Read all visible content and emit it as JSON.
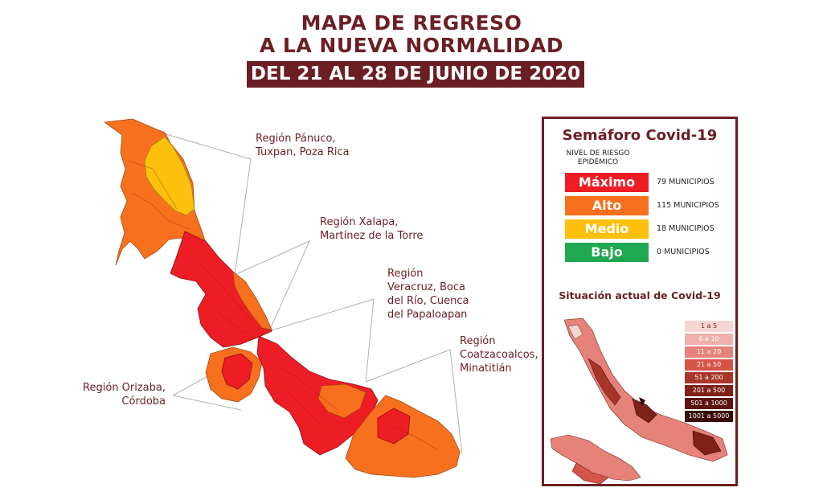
{
  "header": {
    "title_line1": "MAPA DE REGRESO",
    "title_line2": "A LA NUEVA NORMALIDAD",
    "date_range": "DEL 21 AL 28 DE JUNIO DE 2020"
  },
  "regions": [
    {
      "lines": [
        "Región Pánuco,",
        "Tuxpan, Poza Rica"
      ]
    },
    {
      "lines": [
        "Región Xalapa,",
        "Martínez de la Torre"
      ]
    },
    {
      "lines": [
        "Región",
        "Veracruz, Boca",
        "del Río, Cuenca",
        "del Papaloapan"
      ]
    },
    {
      "lines": [
        "Región",
        "Coatzacoalcos,",
        "Minatitlán"
      ]
    },
    {
      "lines": [
        "Región Orizaba,",
        "Córdoba"
      ]
    }
  ],
  "semaforo": {
    "title": "Semáforo Covid-19",
    "risk_header": [
      "NIVEL DE RIESGO",
      "EPIDÉMICO"
    ],
    "levels": [
      {
        "label": "Máximo",
        "count": "79 MUNICIPIOS",
        "color": "#ee1c25"
      },
      {
        "label": "Alto",
        "count": "115 MUNICIPIOS",
        "color": "#f7701e"
      },
      {
        "label": "Medio",
        "count": "18 MUNICIPIOS",
        "color": "#fcc00d"
      },
      {
        "label": "Bajo",
        "count": "0 MUNICIPIOS",
        "color": "#1fa850"
      }
    ],
    "situation_title": "Situación actual de Covid-19",
    "case_legend": [
      {
        "label": "1 a 5",
        "color": "#f4d6d3"
      },
      {
        "label": "6 a 10",
        "color": "#eeb0aa"
      },
      {
        "label": "11 a 20",
        "color": "#e58279"
      },
      {
        "label": "21 a 50",
        "color": "#d45548"
      },
      {
        "label": "51 a 200",
        "color": "#a73528"
      },
      {
        "label": "201 a 500",
        "color": "#7e2219"
      },
      {
        "label": "501 a 1000",
        "color": "#5a150f"
      },
      {
        "label": "1001 a 5000",
        "color": "#3a0a07"
      }
    ]
  },
  "colors": {
    "brand": "#6b1f24",
    "maximo": "#ee1c25",
    "alto": "#f7701e",
    "medio": "#fcc00d"
  }
}
